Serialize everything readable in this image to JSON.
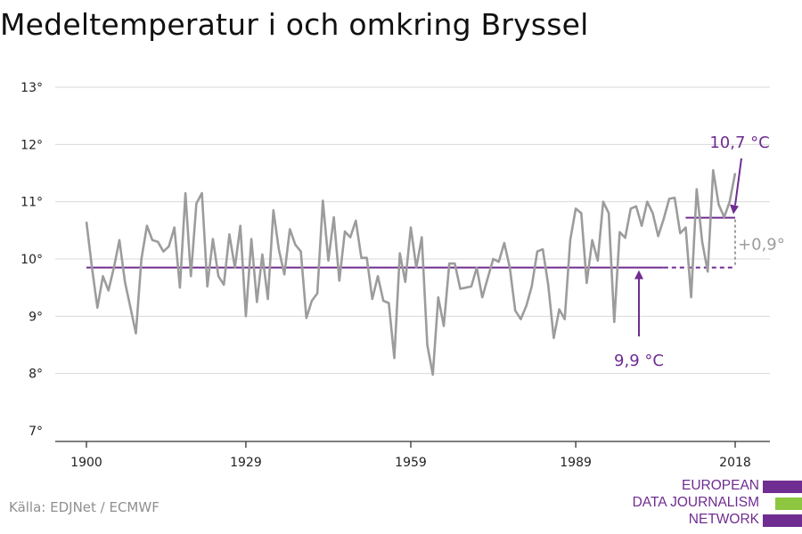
{
  "title": "Medeltemperatur i och omkring Bryssel",
  "source": "Källa: EDJNet / ECMWF",
  "logo": {
    "lines": [
      "EUROPEAN",
      "DATA JOURNALISM",
      "NETWORK"
    ],
    "colors": [
      "#6f2c91",
      "#8dc63f",
      "#6f2c91"
    ]
  },
  "colors": {
    "series": "#9c9c9c",
    "accent": "#6f2c91",
    "grid": "#d9d9d9",
    "axis": "#333333",
    "diff": "#9c9c9c"
  },
  "chart_data": {
    "type": "line",
    "title": "Medeltemperatur i och omkring Bryssel",
    "xlabel": "",
    "ylabel": "",
    "xlim": [
      1900,
      2018
    ],
    "ylim": [
      7,
      13
    ],
    "x_ticks": [
      1900,
      1929,
      1959,
      1989,
      2018
    ],
    "x_tick_labels": [
      "1900",
      "1929",
      "1959",
      "1989",
      "2018"
    ],
    "y_ticks": [
      7,
      8,
      9,
      10,
      11,
      12,
      13
    ],
    "y_tick_labels": [
      "7°",
      "8°",
      "9°",
      "10°",
      "11°",
      "12°",
      "13°"
    ],
    "grid": true,
    "series": [
      {
        "x": [
          1900,
          1901,
          1902,
          1903,
          1904,
          1905,
          1906,
          1907,
          1908,
          1909,
          1910,
          1911,
          1912,
          1913,
          1914,
          1915,
          1916,
          1917,
          1918,
          1919,
          1920,
          1921,
          1922,
          1923,
          1924,
          1925,
          1926,
          1927,
          1928,
          1929,
          1930,
          1931,
          1932,
          1933,
          1934,
          1935,
          1936,
          1937,
          1938,
          1939,
          1940,
          1941,
          1942,
          1943,
          1944,
          1945,
          1946,
          1947,
          1948,
          1949,
          1950,
          1951,
          1952,
          1953,
          1954,
          1955,
          1956,
          1957,
          1958,
          1959,
          1960,
          1961,
          1962,
          1963,
          1964,
          1965,
          1966,
          1967,
          1968,
          1969,
          1970,
          1971,
          1972,
          1973,
          1974,
          1975,
          1976,
          1977,
          1978,
          1979,
          1980,
          1981,
          1982,
          1983,
          1984,
          1985,
          1986,
          1987,
          1988,
          1989,
          1990,
          1991,
          1992,
          1993,
          1994,
          1995,
          1996,
          1997,
          1998,
          1999,
          2000,
          2001,
          2002,
          2003,
          2004,
          2005,
          2006,
          2007,
          2008,
          2009,
          2010,
          2011,
          2012,
          2013,
          2014,
          2015,
          2016,
          2017,
          2018
        ],
        "values": [
          10.65,
          9.85,
          9.15,
          9.7,
          9.45,
          9.85,
          10.33,
          9.6,
          9.15,
          8.7,
          10.0,
          10.58,
          10.33,
          10.3,
          10.13,
          10.22,
          10.55,
          9.5,
          11.15,
          9.7,
          10.97,
          11.15,
          9.52,
          10.35,
          9.7,
          9.55,
          10.43,
          9.85,
          10.58,
          9.0,
          10.35,
          9.25,
          10.08,
          9.3,
          10.85,
          10.17,
          9.73,
          10.52,
          10.25,
          10.13,
          8.97,
          9.27,
          9.4,
          11.02,
          9.97,
          10.73,
          9.62,
          10.48,
          10.38,
          10.67,
          10.02,
          10.02,
          9.3,
          9.7,
          9.27,
          9.23,
          8.27,
          10.1,
          9.6,
          10.55,
          9.85,
          10.38,
          8.5,
          7.98,
          9.33,
          8.83,
          9.92,
          9.92,
          9.48,
          9.5,
          9.52,
          9.85,
          9.33,
          9.67,
          10.0,
          9.95,
          10.28,
          9.85,
          9.1,
          8.95,
          9.18,
          9.52,
          10.13,
          10.17,
          9.55,
          8.62,
          9.12,
          8.95,
          10.33,
          10.88,
          10.8,
          9.58,
          10.33,
          9.97,
          11.0,
          10.8,
          8.9,
          10.47,
          10.37,
          10.88,
          10.92,
          10.58,
          11.0,
          10.8,
          10.4,
          10.7,
          11.05,
          11.07,
          10.45,
          10.55,
          9.33,
          11.22,
          10.3,
          9.78,
          11.55,
          10.95,
          10.73,
          11.0,
          11.5
        ]
      }
    ],
    "reference_lines": [
      {
        "label": "9,9 °C",
        "value": 9.85,
        "x_start": 1900,
        "x_solid_end": 2005,
        "x_end": 2018
      },
      {
        "label": "10,7 °C",
        "value": 10.72,
        "x_start": 2009,
        "x_end": 2018
      }
    ],
    "difference_label": "+0,9°"
  }
}
